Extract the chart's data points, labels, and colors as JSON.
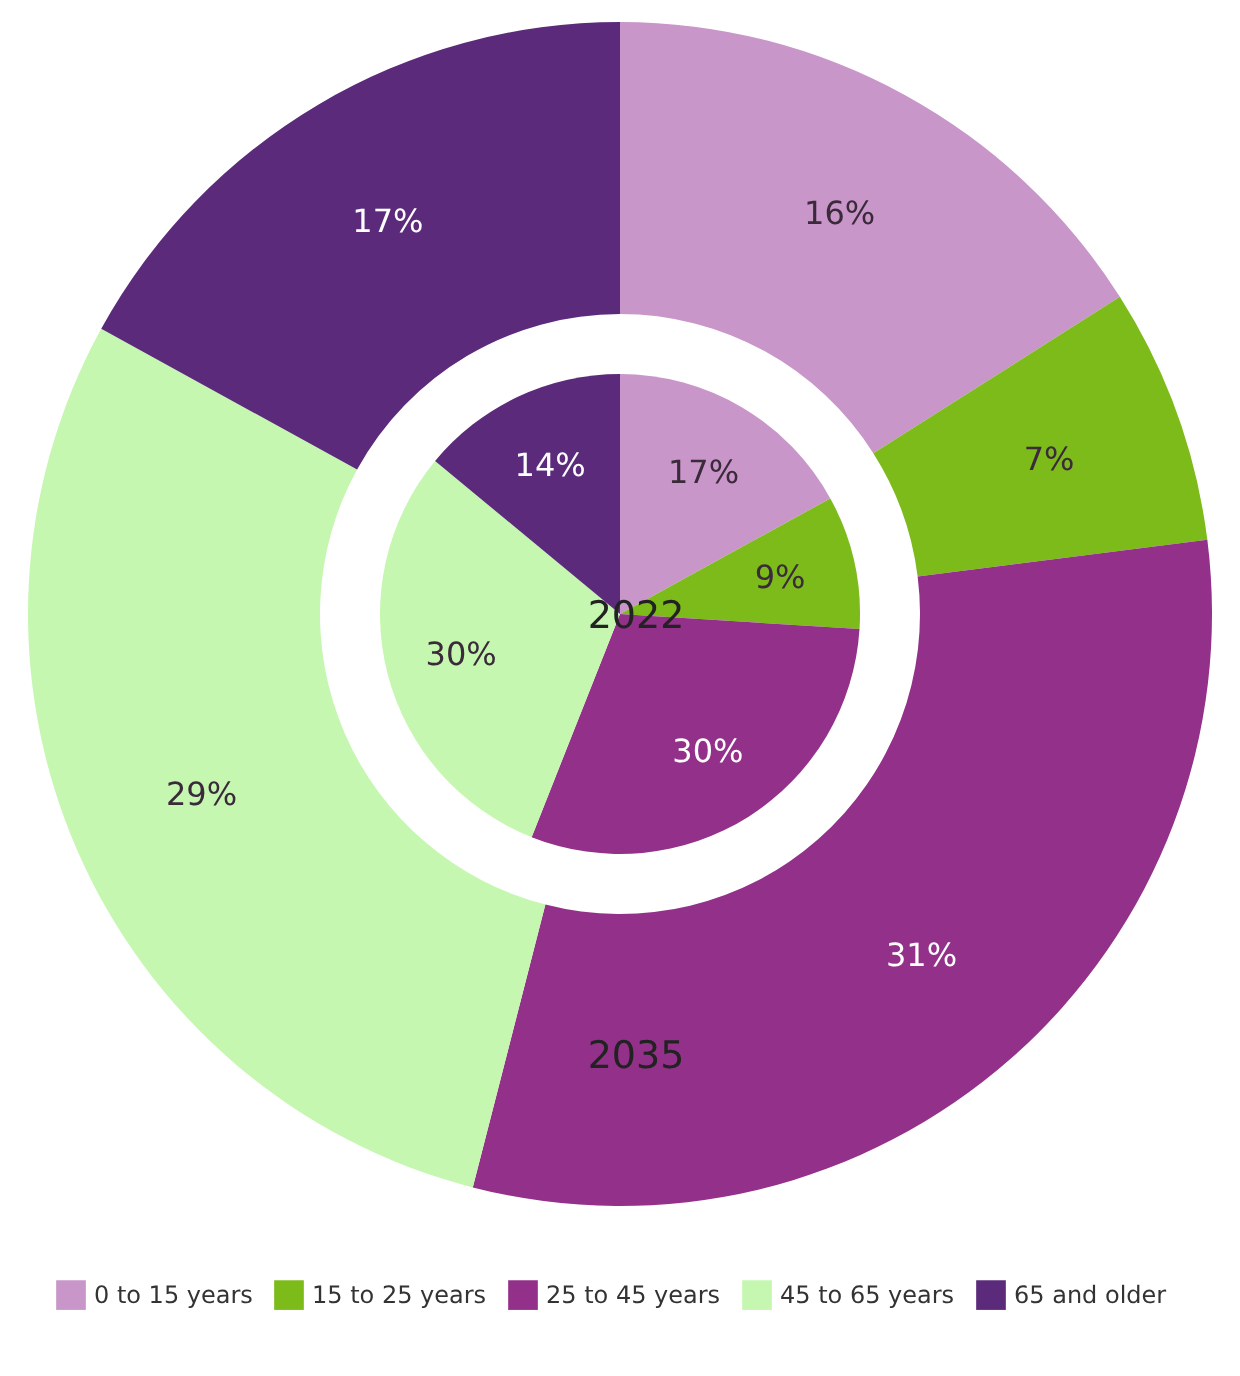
{
  "chart_data": {
    "type": "donut",
    "categories": [
      "0 to 15 years",
      "15 to 25 years",
      "25 to 45 years",
      "45 to 65 years",
      "65 and older"
    ],
    "colors": [
      "#c896c8",
      "#7dbb1a",
      "#93318a",
      "#c5f7b0",
      "#5b2a7b"
    ],
    "series": [
      {
        "name": "2022",
        "values": [
          17,
          9,
          30,
          30,
          14
        ],
        "value_labels": [
          "17%",
          "9%",
          "30%",
          "30%",
          "14%"
        ]
      },
      {
        "name": "2035",
        "values": [
          16,
          7,
          31,
          29,
          17
        ],
        "value_labels": [
          "16%",
          "7%",
          "31%",
          "29%",
          "17%"
        ]
      }
    ],
    "legend": "bottom"
  }
}
